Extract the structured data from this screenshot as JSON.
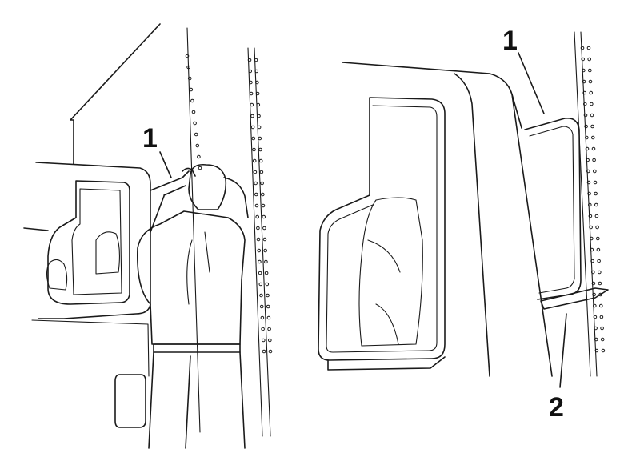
{
  "callouts": {
    "left_1": "1",
    "right_1": "1",
    "right_2": "2"
  },
  "colors": {
    "ink": "#1a1a1a",
    "background": "#ffffff"
  }
}
